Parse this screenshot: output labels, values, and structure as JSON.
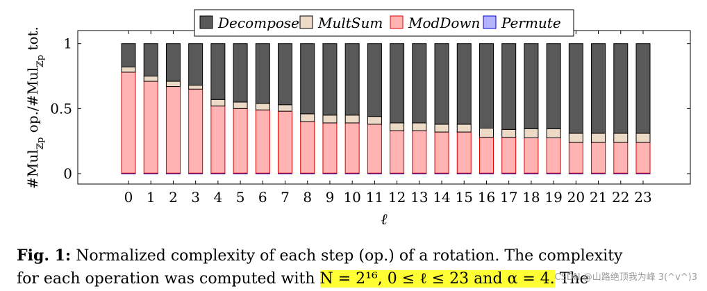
{
  "chart_data": {
    "type": "bar",
    "stacked": true,
    "categories": [
      "0",
      "1",
      "2",
      "3",
      "4",
      "5",
      "6",
      "7",
      "8",
      "9",
      "10",
      "11",
      "12",
      "13",
      "14",
      "15",
      "16",
      "17",
      "18",
      "19",
      "20",
      "21",
      "22",
      "23"
    ],
    "xlabel": "ℓ",
    "ylabel": "#Mul_Zp op./#Mul_Zp tot.",
    "ylabel_parts": [
      "#Mul",
      "ℤp",
      " op./#Mul",
      "ℤp",
      " tot."
    ],
    "ylim": [
      -0.08,
      1.1
    ],
    "yticks": [
      0,
      0.5,
      1
    ],
    "ytick_labels": [
      "0",
      "0.5",
      "1"
    ],
    "grid": false,
    "legend_position": "top-center",
    "series": [
      {
        "name": "Permute",
        "color": "#b3b3ff",
        "edge": "#0000cc",
        "values": [
          0.004,
          0.004,
          0.004,
          0.004,
          0.004,
          0.004,
          0.004,
          0.004,
          0.004,
          0.004,
          0.004,
          0.004,
          0.004,
          0.004,
          0.004,
          0.004,
          0.004,
          0.004,
          0.004,
          0.004,
          0.004,
          0.004,
          0.004,
          0.004
        ]
      },
      {
        "name": "ModDown",
        "color": "#ffb3b3",
        "edge": "#e00000",
        "values": [
          0.776,
          0.706,
          0.666,
          0.646,
          0.516,
          0.496,
          0.486,
          0.476,
          0.396,
          0.386,
          0.386,
          0.376,
          0.326,
          0.326,
          0.316,
          0.316,
          0.276,
          0.276,
          0.271,
          0.271,
          0.236,
          0.236,
          0.236,
          0.236
        ]
      },
      {
        "name": "MultSum",
        "color": "#ecd9c6",
        "edge": "#000000",
        "values": [
          0.04,
          0.04,
          0.04,
          0.03,
          0.05,
          0.05,
          0.05,
          0.05,
          0.06,
          0.06,
          0.06,
          0.06,
          0.06,
          0.06,
          0.06,
          0.06,
          0.07,
          0.06,
          0.07,
          0.07,
          0.07,
          0.07,
          0.07,
          0.07
        ]
      },
      {
        "name": "Decompose",
        "color": "#595959",
        "edge": "#000000",
        "values": [
          0.18,
          0.25,
          0.29,
          0.32,
          0.43,
          0.45,
          0.46,
          0.47,
          0.54,
          0.55,
          0.55,
          0.56,
          0.61,
          0.61,
          0.62,
          0.62,
          0.65,
          0.66,
          0.655,
          0.655,
          0.69,
          0.69,
          0.69,
          0.69
        ]
      }
    ],
    "legend_order": [
      "Decompose",
      "MultSum",
      "ModDown",
      "Permute"
    ]
  },
  "caption": {
    "label": "Fig. 1:",
    "line1": "Normalized complexity of each step (op.) of a rotation. The complexity",
    "line2_start": "for each operation was computed with ",
    "line2_highlight": "N = 2¹⁶, 0 ≤ ℓ ≤ 23 and α = 4.",
    "line2_end": " The"
  },
  "watermark": "CSDN @山路绝顶我为峰 3(^v^)3"
}
